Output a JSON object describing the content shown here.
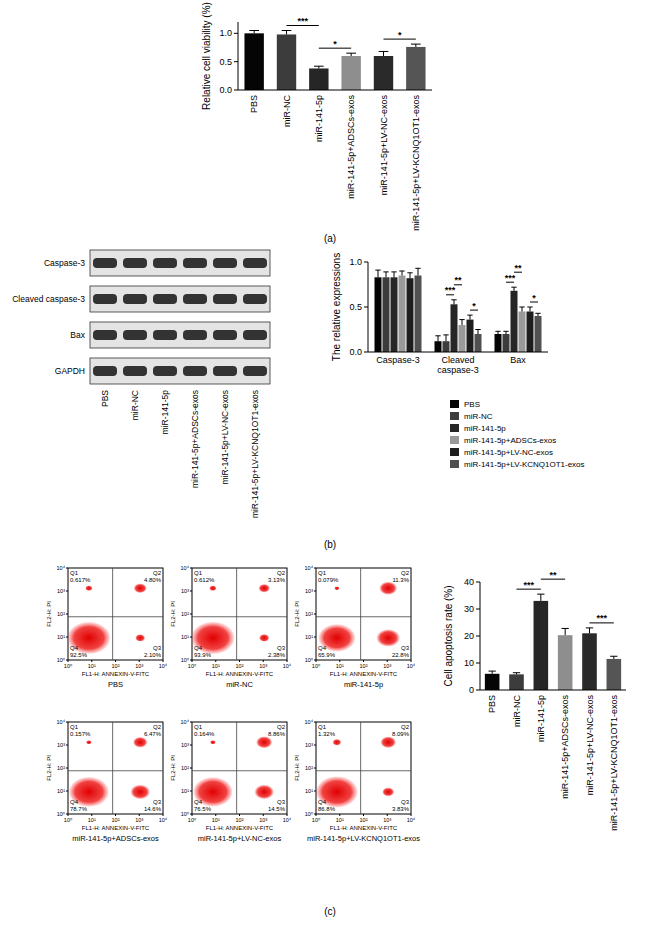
{
  "figure": {
    "panel_labels": [
      "(a)",
      "(b)",
      "(c)"
    ]
  },
  "chart_data": [
    {
      "type": "bar",
      "y_label": "Relative cell viability (%)",
      "categories": [
        "PBS",
        "miR-NC",
        "miR-141-5p",
        "miR-141-5p+ADSCs-exos",
        "miR-141-5p+LV-NC-exos",
        "miR-141-5p+LV-KCNQ1OT1-exos"
      ],
      "values": [
        1.0,
        0.98,
        0.38,
        0.6,
        0.6,
        0.76
      ],
      "errors": [
        0.05,
        0.07,
        0.04,
        0.05,
        0.08,
        0.05
      ],
      "colors": [
        "#050505",
        "#3c3c3c",
        "#262626",
        "#8e8e8e",
        "#2a2a2a",
        "#555555"
      ],
      "ylim": [
        0,
        1.2
      ],
      "yticks": [
        {
          "value": 0,
          "label": "0.0"
        },
        {
          "value": 0.5,
          "label": "0.5"
        },
        {
          "value": 1,
          "label": "1.0"
        }
      ],
      "annotations": [
        {
          "text": "***",
          "between": [
            "miR-NC",
            "miR-141-5p"
          ]
        },
        {
          "text": "*",
          "between": [
            "miR-141-5p",
            "miR-141-5p+ADSCs-exos"
          ]
        },
        {
          "text": "*",
          "between": [
            "miR-141-5p+LV-NC-exos",
            "miR-141-5p+LV-KCNQ1OT1-exos"
          ]
        }
      ]
    },
    {
      "type": "bar",
      "y_label": "The relative expressions",
      "categories": [
        "Caspase-3",
        "Cleaved caspase-3",
        "Bax"
      ],
      "series": [
        {
          "name": "PBS",
          "color": "#050505",
          "values": [
            0.83,
            0.12,
            0.2
          ],
          "errors": [
            0.08,
            0.06,
            0.03
          ]
        },
        {
          "name": "miR-NC",
          "color": "#3c3c3c",
          "values": [
            0.83,
            0.12,
            0.2
          ],
          "errors": [
            0.06,
            0.07,
            0.03
          ]
        },
        {
          "name": "miR-141-5p",
          "color": "#262626",
          "values": [
            0.83,
            0.53,
            0.68
          ],
          "errors": [
            0.06,
            0.05,
            0.04
          ]
        },
        {
          "name": "miR-141-5p+ADSCs-exos",
          "color": "#9a9a9a",
          "values": [
            0.85,
            0.3,
            0.45
          ],
          "errors": [
            0.05,
            0.06,
            0.05
          ]
        },
        {
          "name": "miR-141-5p+LV-NC-exos",
          "color": "#1e1e1e",
          "values": [
            0.82,
            0.36,
            0.45
          ],
          "errors": [
            0.06,
            0.05,
            0.05
          ]
        },
        {
          "name": "miR-141-5p+LV-KCNQ1OT1-exos",
          "color": "#505050",
          "values": [
            0.85,
            0.2,
            0.4
          ],
          "errors": [
            0.08,
            0.05,
            0.03
          ]
        }
      ],
      "ylim": [
        0,
        1.0
      ],
      "yticks": [
        {
          "value": 0,
          "label": "0.0"
        },
        {
          "value": 0.5,
          "label": "0.5"
        },
        {
          "value": 1,
          "label": "1.0"
        }
      ],
      "legend": "bottom",
      "annotations": [
        {
          "text": "***",
          "category": "Cleaved caspase-3",
          "between": [
            "miR-NC",
            "miR-141-5p"
          ]
        },
        {
          "text": "**",
          "category": "Cleaved caspase-3",
          "between": [
            "miR-141-5p",
            "miR-141-5p+ADSCs-exos"
          ]
        },
        {
          "text": "*",
          "category": "Cleaved caspase-3",
          "between": [
            "miR-141-5p+LV-NC-exos",
            "miR-141-5p+LV-KCNQ1OT1-exos"
          ]
        },
        {
          "text": "***",
          "category": "Bax",
          "between": [
            "miR-NC",
            "miR-141-5p"
          ]
        },
        {
          "text": "**",
          "category": "Bax",
          "between": [
            "miR-141-5p",
            "miR-141-5p+ADSCs-exos"
          ]
        },
        {
          "text": "*",
          "category": "Bax",
          "between": [
            "miR-141-5p+LV-NC-exos",
            "miR-141-5p+LV-KCNQ1OT1-exos"
          ]
        }
      ]
    },
    {
      "type": "bar",
      "y_label": "Cell apoptosis rate (%)",
      "categories": [
        "PBS",
        "miR-NC",
        "miR-141-5p",
        "miR-141-5p+ADSCs-exos",
        "miR-141-5p+LV-NC-exos",
        "miR-141-5p+LV-KCNQ1OT1-exos"
      ],
      "values": [
        6,
        5.8,
        33,
        20.3,
        21,
        11.5
      ],
      "errors": [
        1,
        0.6,
        2.5,
        2.5,
        2,
        1
      ],
      "colors": [
        "#050505",
        "#3c3c3c",
        "#262626",
        "#8e8e8e",
        "#2a2a2a",
        "#555555"
      ],
      "ylim": [
        0,
        40
      ],
      "yticks": [
        0,
        10,
        20,
        30,
        40
      ],
      "annotations": [
        {
          "text": "***",
          "between": [
            "miR-NC",
            "miR-141-5p"
          ]
        },
        {
          "text": "**",
          "between": [
            "miR-141-5p",
            "miR-141-5p+ADSCs-exos"
          ]
        },
        {
          "text": "***",
          "between": [
            "miR-141-5p+LV-NC-exos",
            "miR-141-5p+LV-KCNQ1OT1-exos"
          ]
        }
      ]
    }
  ],
  "blot": {
    "rows": [
      "Caspase-3",
      "Cleaved caspase-3",
      "Bax",
      "GAPDH"
    ],
    "lanes": [
      "PBS",
      "miR-NC",
      "miR-141-5p",
      "miR-141-5p+ADSCs-exos",
      "miR-141-5p+LV-NC-exos",
      "miR-141-5p+LV-KCNQ1OT1-exos"
    ]
  },
  "flow": {
    "x_label": "FL1-H: ANNEXIN-V-FITC",
    "y_label": "FL2-H: PI",
    "ticks": [
      {
        "value": 1,
        "label": "10⁰"
      },
      {
        "value": 10,
        "label": "10¹"
      },
      {
        "value": 100,
        "label": "10²"
      },
      {
        "value": 1000,
        "label": "10³"
      },
      {
        "value": 10000,
        "label": "10⁴"
      }
    ],
    "plots": [
      {
        "title": "PBS",
        "quadrants": [
          {
            "name": "Q1",
            "value": 0.617,
            "label": "0.617%"
          },
          {
            "name": "Q2",
            "value": 4.8,
            "label": "4.80%"
          },
          {
            "name": "Q3",
            "value": 2.1,
            "label": "2.10%"
          },
          {
            "name": "Q4",
            "value": 92.5,
            "label": "92.5%"
          }
        ]
      },
      {
        "title": "miR-NC",
        "quadrants": [
          {
            "name": "Q1",
            "value": 0.612,
            "label": "0.612%"
          },
          {
            "name": "Q2",
            "value": 3.13,
            "label": "3.13%"
          },
          {
            "name": "Q3",
            "value": 2.38,
            "label": "2.38%"
          },
          {
            "name": "Q4",
            "value": 93.9,
            "label": "93.9%"
          }
        ]
      },
      {
        "title": "miR-141-5p",
        "quadrants": [
          {
            "name": "Q1",
            "value": 0.079,
            "label": "0.079%"
          },
          {
            "name": "Q2",
            "value": 11.3,
            "label": "11.3%"
          },
          {
            "name": "Q3",
            "value": 22.8,
            "label": "22.8%"
          },
          {
            "name": "Q4",
            "value": 65.9,
            "label": "65.9%"
          }
        ]
      },
      {
        "title": "miR-141-5p+ADSCs-exos",
        "quadrants": [
          {
            "name": "Q1",
            "value": 0.157,
            "label": "0.157%"
          },
          {
            "name": "Q2",
            "value": 6.47,
            "label": "6.47%"
          },
          {
            "name": "Q3",
            "value": 14.6,
            "label": "14.6%"
          },
          {
            "name": "Q4",
            "value": 78.7,
            "label": "78.7%"
          }
        ]
      },
      {
        "title": "miR-141-5p+LV-NC-exos",
        "quadrants": [
          {
            "name": "Q1",
            "value": 0.164,
            "label": "0.164%"
          },
          {
            "name": "Q2",
            "value": 8.86,
            "label": "8.86%"
          },
          {
            "name": "Q3",
            "value": 14.5,
            "label": "14.5%"
          },
          {
            "name": "Q4",
            "value": 76.5,
            "label": "76.5%"
          }
        ]
      },
      {
        "title": "miR-141-5p+LV-KCNQ1OT1-exos",
        "quadrants": [
          {
            "name": "Q1",
            "value": 1.32,
            "label": "1.32%"
          },
          {
            "name": "Q2",
            "value": 8.09,
            "label": "8.09%"
          },
          {
            "name": "Q3",
            "value": 3.83,
            "label": "3.83%"
          },
          {
            "name": "Q4",
            "value": 86.8,
            "label": "86.8%"
          }
        ]
      }
    ]
  }
}
